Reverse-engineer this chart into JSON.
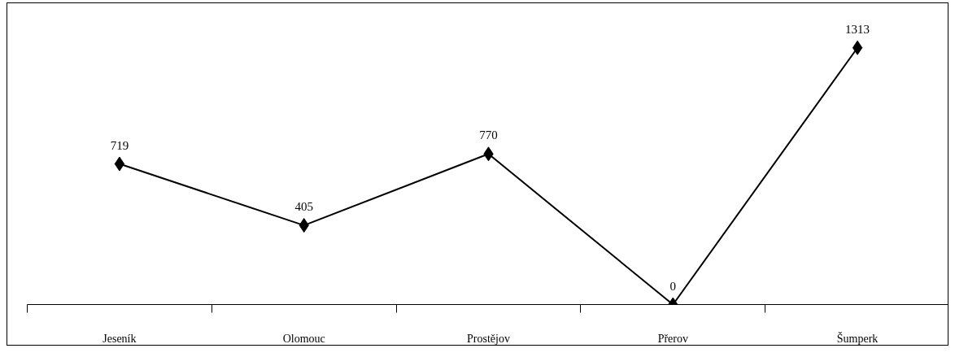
{
  "chart_data": {
    "type": "line",
    "categories": [
      "Jeseník",
      "Olomouc",
      "Prostějov",
      "Přerov",
      "Šumperk"
    ],
    "series": [
      {
        "color": "#000000",
        "values": [
          719,
          405,
          770,
          0,
          1313
        ]
      }
    ],
    "data_labels": true,
    "marker": "diamond",
    "line_style": "solid",
    "grid": false,
    "tick_labels": "x"
  }
}
